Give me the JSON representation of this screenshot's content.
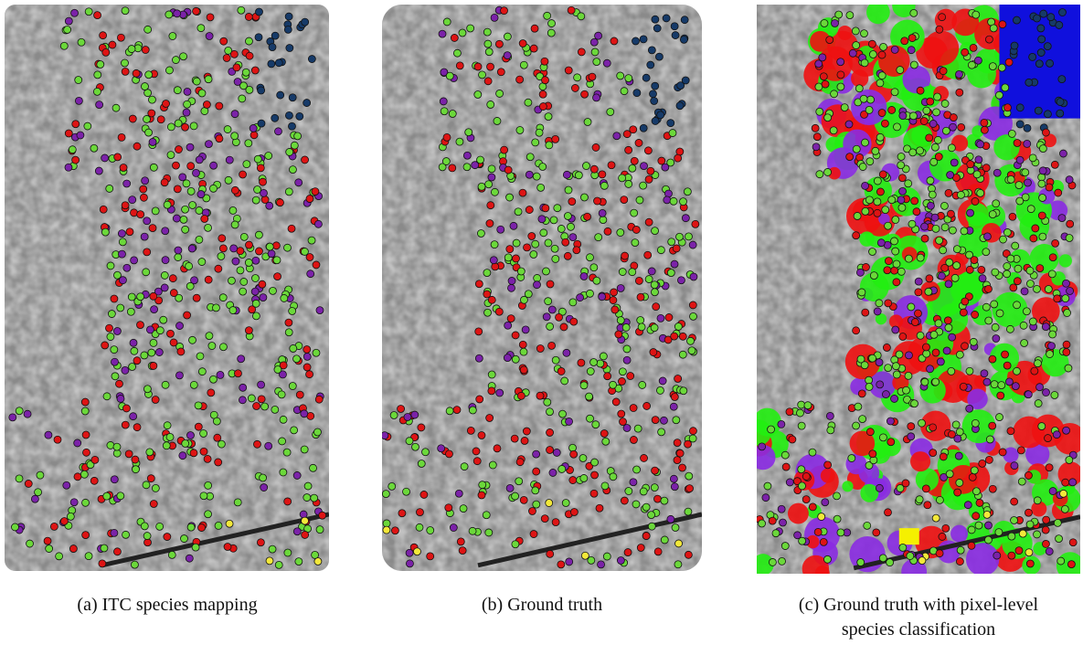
{
  "figure": {
    "panels": [
      {
        "caption": [
          "(a) ITC species mapping"
        ]
      },
      {
        "caption": [
          "(b) Ground truth"
        ]
      },
      {
        "caption": [
          "(c) Ground truth with pixel-level",
          "species classification"
        ]
      }
    ]
  }
}
